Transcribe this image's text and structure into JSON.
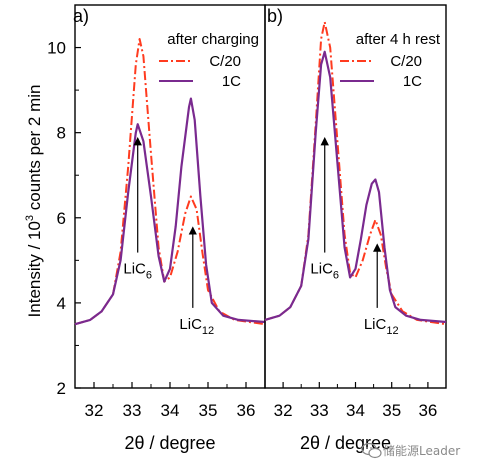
{
  "chart_data": {
    "type": "line",
    "ylabel": "Intensity / 10",
    "ylabel_sup": "3",
    "ylabel_rest": " counts per 2 min",
    "ylim": [
      2,
      11
    ],
    "yticks": [
      2,
      4,
      6,
      8,
      10
    ],
    "panels": [
      {
        "id": "a",
        "panel_label": "a)",
        "condition": "after charging",
        "xlabel": "2θ / degree",
        "xlim": [
          31.5,
          36.5
        ],
        "xticks": [
          32,
          33,
          34,
          35,
          36
        ],
        "legend_placement": "top-right",
        "series": [
          {
            "name": "C/20",
            "color": "#ff3b1f",
            "style": "dash-dot",
            "points": [
              [
                31.5,
                3.5
              ],
              [
                31.9,
                3.6
              ],
              [
                32.2,
                3.8
              ],
              [
                32.5,
                4.2
              ],
              [
                32.7,
                5.2
              ],
              [
                32.9,
                7.2
              ],
              [
                33.1,
                9.6
              ],
              [
                33.2,
                10.2
              ],
              [
                33.3,
                9.8
              ],
              [
                33.5,
                7.5
              ],
              [
                33.7,
                5.3
              ],
              [
                33.85,
                4.5
              ],
              [
                34.0,
                4.6
              ],
              [
                34.2,
                5.2
              ],
              [
                34.4,
                6.1
              ],
              [
                34.55,
                6.5
              ],
              [
                34.7,
                6.2
              ],
              [
                34.85,
                5.2
              ],
              [
                35.0,
                4.3
              ],
              [
                35.3,
                3.8
              ],
              [
                35.7,
                3.6
              ],
              [
                36.5,
                3.5
              ]
            ]
          },
          {
            "name": "1C",
            "color": "#7a2a8f",
            "style": "solid",
            "points": [
              [
                31.5,
                3.5
              ],
              [
                31.9,
                3.6
              ],
              [
                32.2,
                3.8
              ],
              [
                32.5,
                4.2
              ],
              [
                32.7,
                5.0
              ],
              [
                32.9,
                6.6
              ],
              [
                33.1,
                8.0
              ],
              [
                33.15,
                8.2
              ],
              [
                33.3,
                7.8
              ],
              [
                33.5,
                6.5
              ],
              [
                33.7,
                5.1
              ],
              [
                33.85,
                4.5
              ],
              [
                34.0,
                4.8
              ],
              [
                34.15,
                5.8
              ],
              [
                34.3,
                7.2
              ],
              [
                34.5,
                8.6
              ],
              [
                34.55,
                8.8
              ],
              [
                34.65,
                8.3
              ],
              [
                34.8,
                6.5
              ],
              [
                34.95,
                4.9
              ],
              [
                35.1,
                4.0
              ],
              [
                35.4,
                3.7
              ],
              [
                35.8,
                3.6
              ],
              [
                36.5,
                3.55
              ]
            ]
          }
        ],
        "annotations": [
          {
            "label": "LiC",
            "sub": "6",
            "x": 33.15,
            "y_from": 5.3,
            "y_to": 7.8
          },
          {
            "label": "LiC",
            "sub": "12",
            "x": 34.6,
            "y_from": 4.0,
            "y_to": 5.7
          }
        ]
      },
      {
        "id": "b",
        "panel_label": "b)",
        "condition": "after 4 h rest",
        "xlabel": "2θ / degree",
        "xlim": [
          31.5,
          36.5
        ],
        "xticks": [
          32,
          33,
          34,
          35,
          36
        ],
        "legend_placement": "top-right",
        "series": [
          {
            "name": "C/20",
            "color": "#ff3b1f",
            "style": "dash-dot",
            "points": [
              [
                31.5,
                3.6
              ],
              [
                31.9,
                3.7
              ],
              [
                32.2,
                3.9
              ],
              [
                32.5,
                4.4
              ],
              [
                32.7,
                5.6
              ],
              [
                32.9,
                8.2
              ],
              [
                33.05,
                10.2
              ],
              [
                33.15,
                10.6
              ],
              [
                33.3,
                10.0
              ],
              [
                33.5,
                7.8
              ],
              [
                33.7,
                5.6
              ],
              [
                33.85,
                4.7
              ],
              [
                34.0,
                4.6
              ],
              [
                34.2,
                5.0
              ],
              [
                34.4,
                5.6
              ],
              [
                34.55,
                5.95
              ],
              [
                34.7,
                5.6
              ],
              [
                34.85,
                4.8
              ],
              [
                35.0,
                4.2
              ],
              [
                35.3,
                3.8
              ],
              [
                35.7,
                3.6
              ],
              [
                36.5,
                3.5
              ]
            ]
          },
          {
            "name": "1C",
            "color": "#7a2a8f",
            "style": "solid",
            "points": [
              [
                31.5,
                3.6
              ],
              [
                31.9,
                3.7
              ],
              [
                32.2,
                3.9
              ],
              [
                32.5,
                4.4
              ],
              [
                32.7,
                5.5
              ],
              [
                32.9,
                8.0
              ],
              [
                33.05,
                9.6
              ],
              [
                33.15,
                9.9
              ],
              [
                33.3,
                9.3
              ],
              [
                33.5,
                7.3
              ],
              [
                33.7,
                5.3
              ],
              [
                33.85,
                4.6
              ],
              [
                34.0,
                4.8
              ],
              [
                34.15,
                5.5
              ],
              [
                34.3,
                6.3
              ],
              [
                34.45,
                6.8
              ],
              [
                34.55,
                6.9
              ],
              [
                34.65,
                6.6
              ],
              [
                34.8,
                5.3
              ],
              [
                34.95,
                4.3
              ],
              [
                35.1,
                3.9
              ],
              [
                35.4,
                3.7
              ],
              [
                35.8,
                3.6
              ],
              [
                36.5,
                3.55
              ]
            ]
          }
        ],
        "annotations": [
          {
            "label": "LiC",
            "sub": "6",
            "x": 33.15,
            "y_from": 5.3,
            "y_to": 7.8
          },
          {
            "label": "LiC",
            "sub": "12",
            "x": 34.6,
            "y_from": 4.0,
            "y_to": 5.3
          }
        ]
      }
    ]
  },
  "watermark": {
    "icon": "wechat-icon",
    "text": "储能源Leader"
  }
}
